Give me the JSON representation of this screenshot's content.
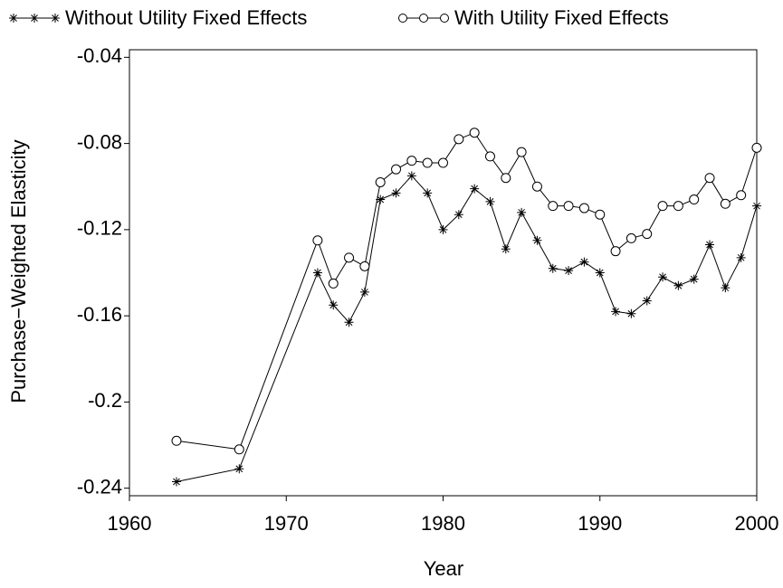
{
  "chart_data": {
    "type": "line",
    "x_label": "Year",
    "y_label": "Purchase−Weighted Elasticity",
    "xlim": [
      1960,
      2000
    ],
    "xticks": [
      1960,
      1970,
      1980,
      1990,
      2000
    ],
    "ylim": [
      -0.2435,
      -0.0365
    ],
    "yticks": [
      -0.04,
      -0.08,
      -0.12,
      -0.16,
      -0.2,
      -0.24
    ],
    "yticks_labels_note_free": null,
    "series": [
      {
        "name": "Without Utility Fixed Effects",
        "color": "#000000",
        "marker": "asterisk",
        "x": [
          1963,
          1967,
          1972,
          1973,
          1974,
          1975,
          1976,
          1977,
          1978,
          1979,
          1980,
          1981,
          1982,
          1983,
          1984,
          1985,
          1986,
          1987,
          1988,
          1989,
          1990,
          1991,
          1992,
          1993,
          1994,
          1995,
          1996,
          1997,
          1998,
          1999,
          2000
        ],
        "values": [
          -0.237,
          -0.231,
          -0.14,
          -0.155,
          -0.163,
          -0.149,
          -0.106,
          -0.103,
          -0.095,
          -0.103,
          -0.12,
          -0.113,
          -0.101,
          -0.107,
          -0.129,
          -0.112,
          -0.125,
          -0.138,
          -0.139,
          -0.135,
          -0.14,
          -0.158,
          -0.159,
          -0.153,
          -0.142,
          -0.146,
          -0.143,
          -0.127,
          -0.147,
          -0.133,
          -0.109
        ]
      },
      {
        "name": "With Utility Fixed Effects",
        "color": "#000000",
        "marker": "circle",
        "x": [
          1963,
          1967,
          1972,
          1973,
          1974,
          1975,
          1976,
          1977,
          1978,
          1979,
          1980,
          1981,
          1982,
          1983,
          1984,
          1985,
          1986,
          1987,
          1988,
          1989,
          1990,
          1991,
          1992,
          1993,
          1994,
          1995,
          1996,
          1997,
          1998,
          1999,
          2000
        ],
        "values": [
          -0.218,
          -0.222,
          -0.125,
          -0.145,
          -0.133,
          -0.137,
          -0.098,
          -0.092,
          -0.088,
          -0.089,
          -0.089,
          -0.078,
          -0.075,
          -0.086,
          -0.096,
          -0.084,
          -0.1,
          -0.109,
          -0.109,
          -0.11,
          -0.113,
          -0.13,
          -0.124,
          -0.122,
          -0.109,
          -0.109,
          -0.106,
          -0.096,
          -0.108,
          -0.104,
          -0.082
        ]
      }
    ]
  }
}
